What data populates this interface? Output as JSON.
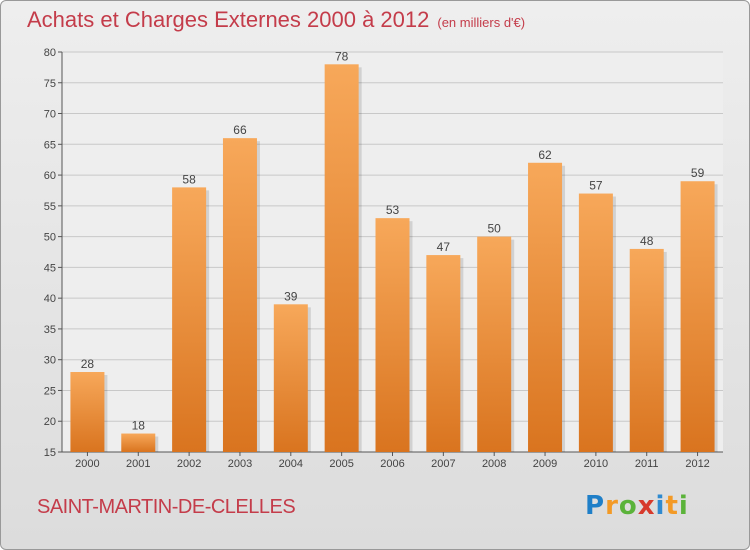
{
  "title": "Achats et Charges Externes 2000 à 2012",
  "subtitle": "(en milliers d'€)",
  "commune": "SAINT-MARTIN-DE-CLELLES",
  "logo_text": "Proxiti",
  "colors": {
    "bar_light": "#f7a85a",
    "bar_dark": "#d9741f",
    "title": "#c43c4a",
    "grid": "#c8c8c8"
  },
  "chart_data": {
    "type": "bar",
    "categories": [
      "2000",
      "2001",
      "2002",
      "2003",
      "2004",
      "2005",
      "2006",
      "2007",
      "2008",
      "2009",
      "2010",
      "2011",
      "2012"
    ],
    "values": [
      28,
      18,
      58,
      66,
      39,
      78,
      53,
      47,
      50,
      62,
      57,
      48,
      59
    ],
    "ylim": [
      15,
      80
    ],
    "yticks": [
      15,
      20,
      25,
      30,
      35,
      40,
      45,
      50,
      55,
      60,
      65,
      70,
      75,
      80
    ],
    "grid": true,
    "title": "Achats et Charges Externes 2000 à 2012",
    "xlabel": "",
    "ylabel": ""
  }
}
